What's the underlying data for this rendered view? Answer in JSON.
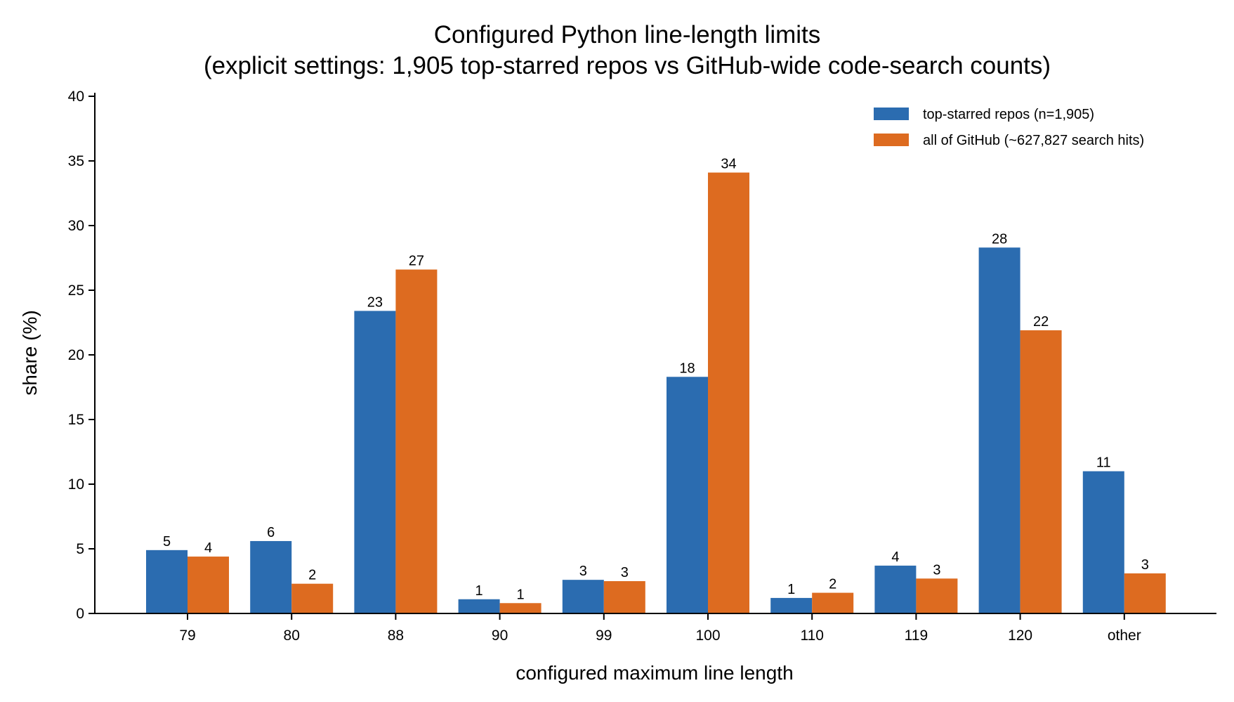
{
  "chart_data": {
    "type": "bar",
    "title": "Configured Python line-length limits",
    "subtitle": "(explicit settings: 1,905 top-starred repos vs GitHub-wide code-search counts)",
    "xlabel": "configured maximum line length",
    "ylabel": "share (%)",
    "categories": [
      "79",
      "80",
      "88",
      "90",
      "99",
      "100",
      "110",
      "119",
      "120",
      "other"
    ],
    "ylim": [
      0,
      40
    ],
    "yticks": [
      0,
      5,
      10,
      15,
      20,
      25,
      30,
      35,
      40
    ],
    "grid": false,
    "legend_position": "top-right",
    "series": [
      {
        "name": "top-starred repos (n=1,905)",
        "color": "#2b6cb0",
        "values": [
          4.9,
          5.6,
          23.4,
          1.1,
          2.6,
          18.3,
          1.2,
          3.7,
          28.3,
          11.0
        ],
        "labels": [
          "5",
          "6",
          "23",
          "1",
          "3",
          "18",
          "1",
          "4",
          "28",
          "11"
        ]
      },
      {
        "name": "all of GitHub (~627,827 search hits)",
        "color": "#dd6b20",
        "values": [
          4.4,
          2.3,
          26.6,
          0.8,
          2.5,
          34.1,
          1.6,
          2.7,
          21.9,
          3.1
        ],
        "labels": [
          "4",
          "2",
          "27",
          "1",
          "3",
          "34",
          "2",
          "3",
          "22",
          "3"
        ]
      }
    ]
  }
}
